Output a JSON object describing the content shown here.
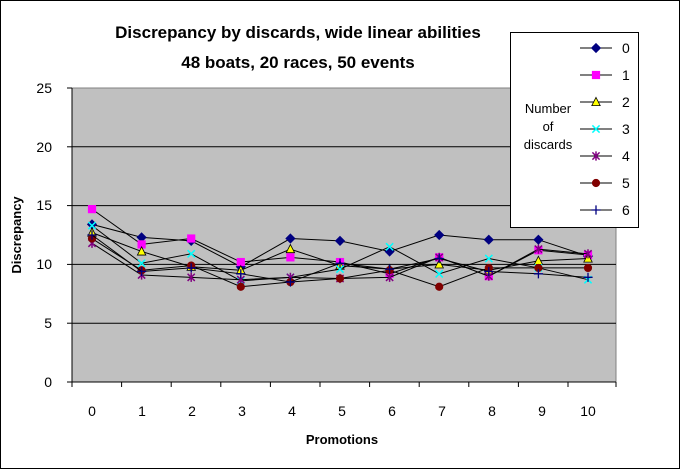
{
  "chart_data": {
    "type": "line",
    "title": [
      "Discrepancy by discards, wide linear abilities",
      "48 boats, 20 races, 50 events"
    ],
    "xlabel": "Promotions",
    "ylabel": "Discrepancy",
    "x": [
      0,
      1,
      2,
      3,
      4,
      5,
      6,
      7,
      8,
      9,
      10
    ],
    "x_tick_labels": [
      "0",
      "1",
      "2",
      "3",
      "4",
      "5",
      "6",
      "7",
      "8",
      "9",
      "10"
    ],
    "y_tick_labels": [
      "0",
      "5",
      "10",
      "15",
      "20",
      "25"
    ],
    "ylim": [
      0,
      25
    ],
    "grid": true,
    "plot_background": "#C0C0C0",
    "legend": {
      "title": [
        "Number",
        "of",
        "discards"
      ],
      "placement": "top-right"
    },
    "series": [
      {
        "name": "0",
        "marker": "diamond",
        "color": "#000080",
        "values": [
          13.4,
          12.3,
          12.0,
          9.8,
          12.2,
          12.0,
          11.1,
          12.5,
          12.1,
          12.1,
          10.7
        ]
      },
      {
        "name": "1",
        "marker": "square",
        "color": "#FF00FF",
        "values": [
          14.7,
          11.7,
          12.2,
          10.2,
          10.6,
          10.2,
          9.2,
          10.6,
          9.0,
          11.2,
          10.8
        ]
      },
      {
        "name": "2",
        "marker": "triangle",
        "color": "#FFFF00",
        "values": [
          12.7,
          11.1,
          9.8,
          9.5,
          11.3,
          9.9,
          9.6,
          10.0,
          9.5,
          10.3,
          10.5
        ]
      },
      {
        "name": "3",
        "marker": "x",
        "color": "#00FFFF",
        "values": [
          13.3,
          10.1,
          10.9,
          8.6,
          8.9,
          9.6,
          11.5,
          9.2,
          10.5,
          9.7,
          8.7
        ]
      },
      {
        "name": "4",
        "marker": "star",
        "color": "#800080",
        "values": [
          11.8,
          9.1,
          8.9,
          8.7,
          8.9,
          8.8,
          8.9,
          10.6,
          9.0,
          11.3,
          10.9
        ]
      },
      {
        "name": "5",
        "marker": "circle",
        "color": "#800000",
        "values": [
          12.2,
          9.5,
          9.9,
          8.1,
          8.5,
          8.8,
          9.5,
          8.1,
          9.7,
          9.7,
          9.7
        ]
      },
      {
        "name": "6",
        "marker": "plus",
        "color": "#000080",
        "values": [
          12.5,
          9.4,
          9.7,
          9.2,
          8.5,
          10.1,
          9.6,
          10.5,
          9.4,
          9.2,
          8.9
        ]
      }
    ]
  }
}
